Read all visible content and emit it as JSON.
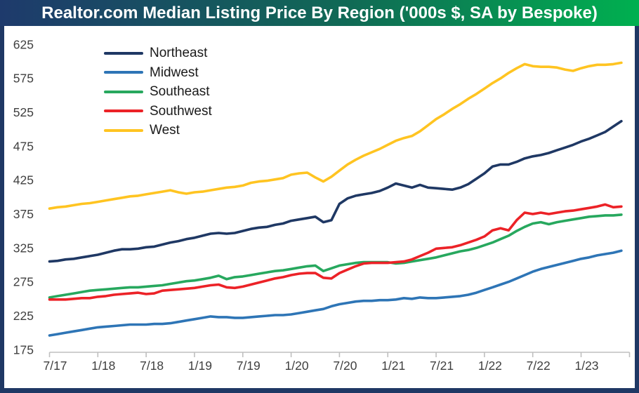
{
  "header": {
    "title": "Realtor.com Median Listing Price By Region ('000s $, SA by Bespoke)"
  },
  "frame": {
    "border_color": "#1F3864",
    "banner_gradient": [
      "#1E3A6C",
      "#00B050"
    ]
  },
  "chart_data": {
    "type": "line",
    "title": "Realtor.com Median Listing Price By Region ('000s $, SA by Bespoke)",
    "units": "thousands of dollars, seasonally adjusted",
    "x_start": "7/17",
    "x_end": "6/23",
    "x_frequency": "monthly",
    "n_points": 72,
    "x_tick_labels": [
      "7/17",
      "1/18",
      "7/18",
      "1/19",
      "7/19",
      "1/20",
      "7/20",
      "1/21",
      "7/21",
      "1/22",
      "7/22",
      "1/23"
    ],
    "x_tick_month_indices": [
      0,
      6,
      12,
      18,
      24,
      30,
      36,
      42,
      48,
      54,
      60,
      66
    ],
    "y_ticks": [
      175,
      225,
      275,
      325,
      375,
      425,
      475,
      525,
      575,
      625
    ],
    "ylim": [
      175,
      625
    ],
    "grid": false,
    "legend_position": "top-left",
    "axis_color": "#BFBFBF",
    "tick_label_color": "#3F3F3F",
    "series": [
      {
        "name": "Northeast",
        "color": "#1F3864",
        "values": [
          305,
          306,
          308,
          309,
          311,
          313,
          315,
          318,
          321,
          323,
          323,
          324,
          326,
          327,
          330,
          333,
          335,
          338,
          340,
          343,
          346,
          347,
          346,
          347,
          350,
          353,
          355,
          356,
          359,
          361,
          365,
          367,
          369,
          371,
          363,
          366,
          390,
          398,
          402,
          404,
          406,
          409,
          414,
          420,
          417,
          414,
          418,
          414,
          413,
          412,
          411,
          414,
          419,
          427,
          435,
          445,
          448,
          448,
          452,
          457,
          460,
          462,
          465,
          469,
          473,
          477,
          482,
          486,
          491,
          496,
          504,
          512
        ]
      },
      {
        "name": "Midwest",
        "color": "#2E75B6",
        "values": [
          196,
          198,
          200,
          202,
          204,
          206,
          208,
          209,
          210,
          211,
          212,
          212,
          212,
          213,
          213,
          214,
          216,
          218,
          220,
          222,
          224,
          223,
          223,
          222,
          222,
          223,
          224,
          225,
          226,
          226,
          227,
          229,
          231,
          233,
          235,
          239,
          242,
          244,
          246,
          247,
          247,
          248,
          248,
          249,
          251,
          250,
          252,
          251,
          251,
          252,
          253,
          254,
          256,
          259,
          263,
          267,
          271,
          275,
          280,
          285,
          290,
          294,
          297,
          300,
          303,
          306,
          309,
          311,
          314,
          316,
          318,
          321
        ]
      },
      {
        "name": "Southeast",
        "color": "#27A85E",
        "values": [
          252,
          254,
          256,
          258,
          260,
          262,
          263,
          264,
          265,
          266,
          267,
          267,
          268,
          269,
          270,
          272,
          274,
          276,
          277,
          279,
          281,
          284,
          279,
          282,
          283,
          285,
          287,
          289,
          291,
          292,
          294,
          296,
          298,
          299,
          291,
          295,
          299,
          301,
          303,
          304,
          304,
          304,
          304,
          302,
          303,
          305,
          307,
          309,
          311,
          314,
          317,
          320,
          322,
          325,
          329,
          333,
          338,
          343,
          350,
          356,
          361,
          363,
          360,
          363,
          365,
          367,
          369,
          371,
          372,
          373,
          373,
          374
        ]
      },
      {
        "name": "Southwest",
        "color": "#EC2227",
        "values": [
          249,
          249,
          249,
          250,
          251,
          251,
          253,
          254,
          256,
          257,
          258,
          259,
          257,
          258,
          262,
          263,
          264,
          265,
          266,
          268,
          270,
          271,
          267,
          266,
          268,
          271,
          274,
          277,
          280,
          282,
          285,
          287,
          288,
          288,
          281,
          280,
          288,
          293,
          298,
          302,
          303,
          303,
          303,
          304,
          305,
          308,
          313,
          318,
          324,
          325,
          326,
          329,
          333,
          337,
          342,
          351,
          354,
          351,
          366,
          377,
          375,
          377,
          375,
          377,
          379,
          380,
          382,
          384,
          386,
          389,
          385,
          386
        ]
      },
      {
        "name": "West",
        "color": "#FFC421",
        "values": [
          383,
          385,
          386,
          388,
          390,
          391,
          393,
          395,
          397,
          399,
          401,
          402,
          404,
          406,
          408,
          410,
          407,
          405,
          407,
          408,
          410,
          412,
          414,
          415,
          417,
          421,
          423,
          424,
          426,
          428,
          433,
          435,
          436,
          429,
          423,
          430,
          439,
          448,
          455,
          461,
          466,
          471,
          477,
          483,
          487,
          490,
          497,
          506,
          515,
          522,
          530,
          537,
          545,
          552,
          560,
          568,
          575,
          583,
          590,
          596,
          593,
          592,
          592,
          591,
          588,
          586,
          590,
          593,
          595,
          595,
          596,
          598
        ]
      }
    ]
  }
}
